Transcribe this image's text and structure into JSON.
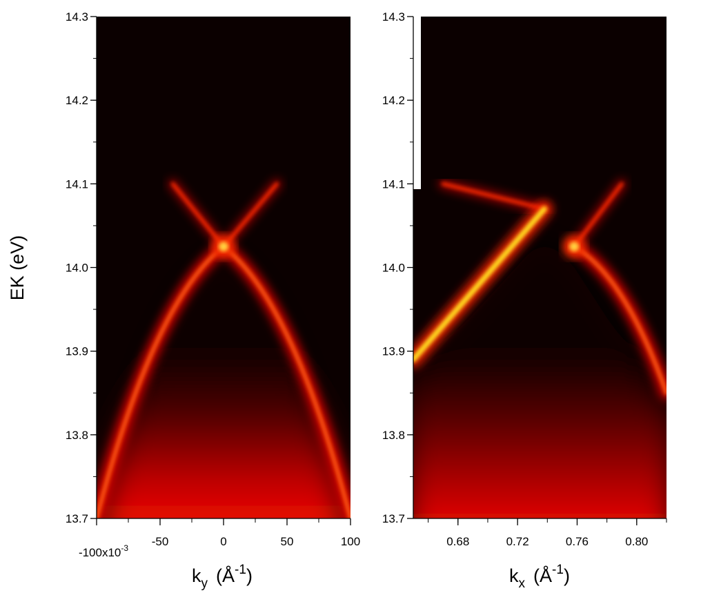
{
  "chart_data": [
    {
      "type": "heatmap",
      "panel": "left",
      "ylabel": "EK  (eV)",
      "xlabel_main": "k",
      "xlabel_sub": "y",
      "xlabel_unit_open": "(Å",
      "xlabel_unit_sup": "-1",
      "xlabel_unit_close": ")",
      "xlim": [
        -0.1,
        0.1
      ],
      "ylim": [
        13.7,
        14.3
      ],
      "x_ticks": [
        {
          "value": -0.1,
          "label": "-100x10"
        },
        {
          "value": -0.05,
          "label": "-50"
        },
        {
          "value": 0,
          "label": "0"
        },
        {
          "value": 0.05,
          "label": "50"
        },
        {
          "value": 0.1,
          "label": "100"
        }
      ],
      "x_ticks_exponent": "-3",
      "y_ticks": [
        {
          "value": 13.7,
          "label": "13.7"
        },
        {
          "value": 13.8,
          "label": "13.8"
        },
        {
          "value": 13.9,
          "label": "13.9"
        },
        {
          "value": 14.0,
          "label": "14.0"
        },
        {
          "value": 14.1,
          "label": "14.1"
        },
        {
          "value": 14.2,
          "label": "14.2"
        },
        {
          "value": 14.3,
          "label": "14.3"
        }
      ],
      "colormap": "black-red-yellow",
      "features": [
        {
          "kind": "dirac_point",
          "x": 0.0,
          "y": 14.025
        },
        {
          "kind": "upper_cone_branch",
          "from": [
            0.0,
            14.025
          ],
          "to": [
            -0.04,
            14.1
          ]
        },
        {
          "kind": "upper_cone_branch",
          "from": [
            0.0,
            14.025
          ],
          "to": [
            0.042,
            14.1
          ]
        },
        {
          "kind": "lower_band",
          "from": [
            0.0,
            14.025
          ],
          "to": [
            -0.1,
            13.7
          ]
        },
        {
          "kind": "lower_band",
          "from": [
            0.0,
            14.025
          ],
          "to": [
            0.1,
            13.7
          ]
        }
      ]
    },
    {
      "type": "heatmap",
      "panel": "right",
      "xlabel_main": "k",
      "xlabel_sub": "x",
      "xlabel_unit_open": "(Å",
      "xlabel_unit_sup": "-1",
      "xlabel_unit_close": ")",
      "xlim": [
        0.65,
        0.82
      ],
      "ylim": [
        13.7,
        14.3
      ],
      "x_ticks": [
        {
          "value": 0.68,
          "label": "0.68"
        },
        {
          "value": 0.72,
          "label": "0.72"
        },
        {
          "value": 0.76,
          "label": "0.76"
        },
        {
          "value": 0.8,
          "label": "0.80"
        }
      ],
      "y_ticks": [
        {
          "value": 13.7,
          "label": "13.7"
        },
        {
          "value": 13.8,
          "label": "13.8"
        },
        {
          "value": 13.9,
          "label": "13.9"
        },
        {
          "value": 14.0,
          "label": "14.0"
        },
        {
          "value": 14.1,
          "label": "14.1"
        },
        {
          "value": 14.2,
          "label": "14.2"
        },
        {
          "value": 14.3,
          "label": "14.3"
        }
      ],
      "colormap": "black-red-yellow",
      "features": [
        {
          "kind": "bright_branch",
          "from": [
            0.65,
            13.89
          ],
          "to": [
            0.738,
            14.07
          ]
        },
        {
          "kind": "dirac_point",
          "x": 0.758,
          "y": 14.025
        },
        {
          "kind": "upper_cone_branch",
          "from": [
            0.758,
            14.025
          ],
          "to": [
            0.79,
            14.1
          ]
        },
        {
          "kind": "upper_cone_branch",
          "from": [
            0.738,
            14.07
          ],
          "to": [
            0.67,
            14.1
          ]
        },
        {
          "kind": "lower_band",
          "from": [
            0.758,
            14.025
          ],
          "to": [
            0.82,
            13.85
          ]
        }
      ]
    }
  ]
}
